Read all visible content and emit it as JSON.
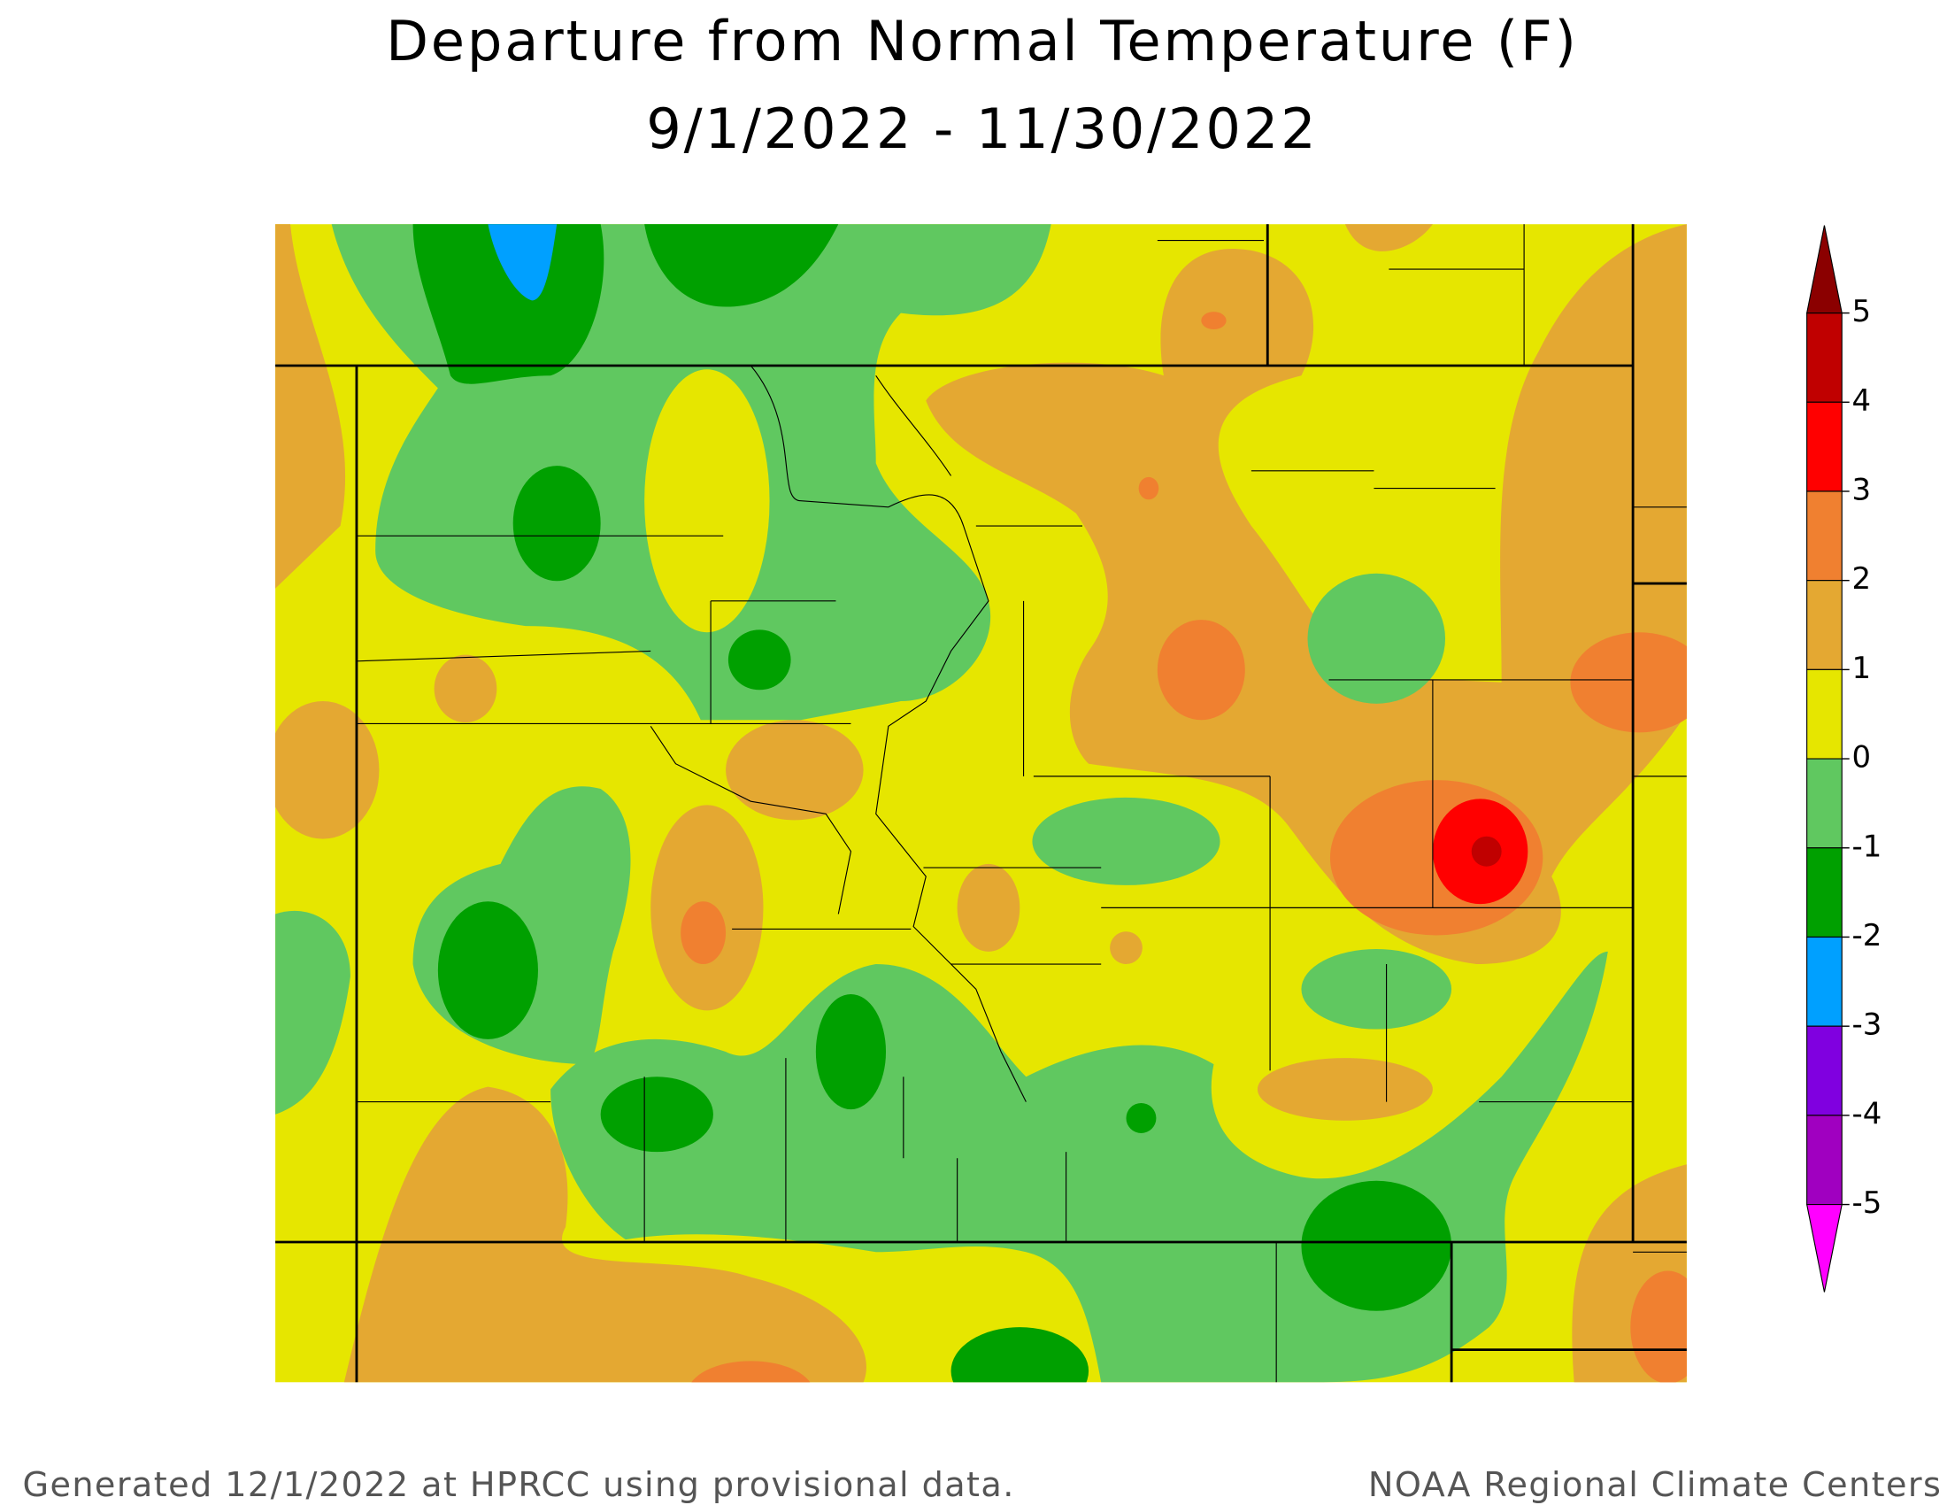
{
  "header": {
    "title": "Departure from Normal Temperature (F)",
    "subtitle": "9/1/2022 - 11/30/2022"
  },
  "legend": {
    "ticks": [
      5,
      4,
      3,
      2,
      1,
      0,
      -1,
      -2,
      -3,
      -4,
      -5
    ],
    "colors": [
      "#c00000",
      "#ff0000",
      "#f08030",
      "#e4a832",
      "#e6e600",
      "#60c860",
      "#00a000",
      "#00a0ff",
      "#8000e0",
      "#a000c0"
    ],
    "max_color": "#8b0000",
    "min_color": "#ff00ff"
  },
  "footer": {
    "left": "Generated 12/1/2022 at HPRCC using provisional data.",
    "right": "NOAA Regional Climate Centers"
  }
}
